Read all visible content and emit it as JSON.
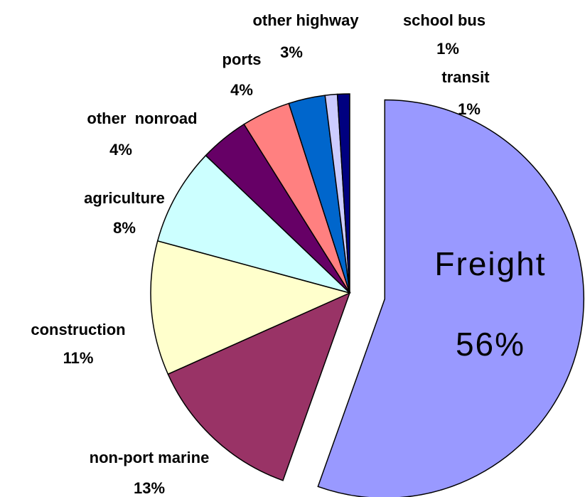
{
  "chart_data": {
    "type": "pie",
    "categories": [
      "Freight",
      "non-port marine",
      "construction",
      "agriculture",
      "other  nonroad",
      "ports",
      "other highway",
      "school bus",
      "transit"
    ],
    "values": [
      56,
      13,
      11,
      8,
      4,
      4,
      3,
      1,
      1
    ],
    "value_labels": [
      "56%",
      "13%",
      "11%",
      "8%",
      "4%",
      "4%",
      "3%",
      "1%",
      "1%"
    ],
    "colors": [
      "#9999ff",
      "#993366",
      "#ffffcc",
      "#ccffff",
      "#660066",
      "#ff8080",
      "#0066cc",
      "#ccccff",
      "#000080"
    ],
    "exploded": [
      0
    ]
  }
}
